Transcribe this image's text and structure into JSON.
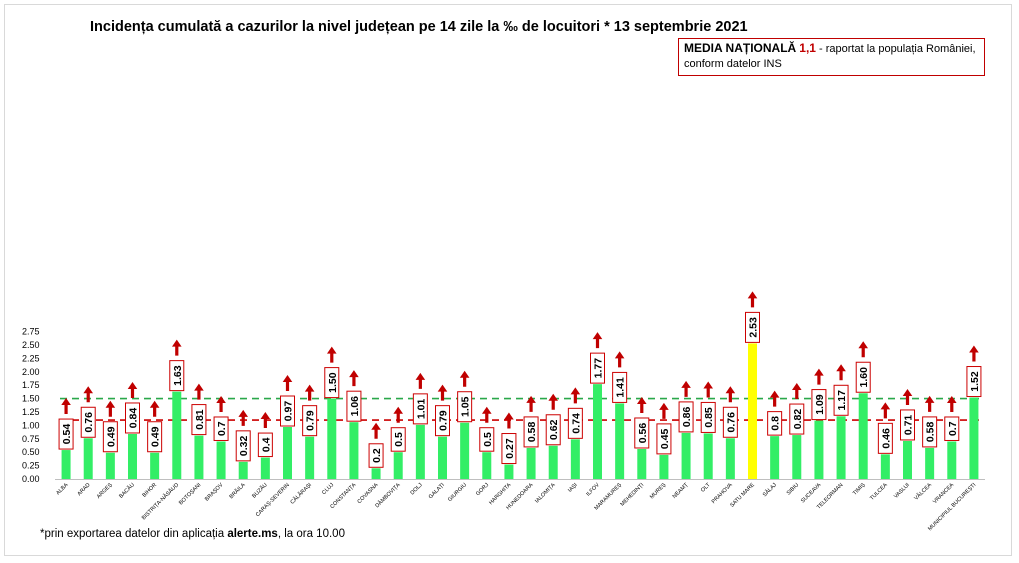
{
  "title": "Incidența cumulată a cazurilor la nivel județean pe 14 zile la ‰ de locuitori * 13 septembrie 2021",
  "note": {
    "lead": "MEDIA NAȚIONALĂ",
    "value": "1,1",
    "rest": " - raportat la populația României, conform datelor INS"
  },
  "footnote": {
    "pre": "*prin exportarea datelor din aplicația ",
    "bold": "alerte.ms",
    "post": ", la ora 10.00"
  },
  "colors": {
    "bar": "#33ee66",
    "highlight": "#ffff00",
    "red": "#cc0000",
    "green_line": "#2aa84a",
    "red_line": "#cc0000",
    "arrow": "#c00000"
  },
  "chart_data": {
    "type": "bar",
    "ylim": [
      0,
      2.75
    ],
    "yticks": [
      "0.00",
      "0.25",
      "0.50",
      "0.75",
      "1.00",
      "1.25",
      "1.50",
      "1.75",
      "2.00",
      "2.25",
      "2.50",
      "2.75"
    ],
    "reference_lines": [
      {
        "value": 1.5,
        "style": "dashed",
        "color": "green"
      },
      {
        "value": 1.1,
        "style": "dashed",
        "color": "red"
      }
    ],
    "highlight": "SATU MARE",
    "categories": [
      "ALBA",
      "ARAD",
      "ARGEȘ",
      "BACĂU",
      "BIHOR",
      "BISTRIȚA-NĂSĂUD",
      "BOTOȘANI",
      "BRAȘOV",
      "BRĂILA",
      "BUZĂU",
      "CARAȘ-SEVERIN",
      "CĂLĂRAȘI",
      "CLUJ",
      "CONSTANȚA",
      "COVASNA",
      "DÂMBOVIȚA",
      "DOLJ",
      "GALAȚI",
      "GIURGIU",
      "GORJ",
      "HARGHITA",
      "HUNEDOARA",
      "IALOMIȚA",
      "IAȘI",
      "ILFOV",
      "MARAMUREȘ",
      "MEHEDINȚI",
      "MUREȘ",
      "NEAMȚ",
      "OLT",
      "PRAHOVA",
      "SATU MARE",
      "SĂLAJ",
      "SIBIU",
      "SUCEAVA",
      "TELEORMAN",
      "TIMIȘ",
      "TULCEA",
      "VASLUI",
      "VÂLCEA",
      "VRANCEA",
      "MUNICIPIUL BUCUREȘTI"
    ],
    "values": [
      0.54,
      0.76,
      0.49,
      0.84,
      0.49,
      1.63,
      0.81,
      0.7,
      0.32,
      0.4,
      0.97,
      0.79,
      1.5,
      1.06,
      0.2,
      0.5,
      1.01,
      0.79,
      1.05,
      0.5,
      0.27,
      0.58,
      0.62,
      0.74,
      1.77,
      1.41,
      0.56,
      0.45,
      0.86,
      0.85,
      0.76,
      2.53,
      0.8,
      0.82,
      1.09,
      1.17,
      1.6,
      0.46,
      0.71,
      0.58,
      0.7,
      1.52
    ],
    "labels": [
      "0.54",
      "0.76",
      "0.49",
      "0.84",
      "0.49",
      "1.63",
      "0.81",
      "0.7",
      "0.32",
      "0.4",
      "0.97",
      "0.79",
      "1.50",
      "1.06",
      "0.2",
      "0.5",
      "1.01",
      "0.79",
      "1.05",
      "0.5",
      "0.27",
      "0.58",
      "0.62",
      "0.74",
      "1.77",
      "1.41",
      "0.56",
      "0.45",
      "0.86",
      "0.85",
      "0.76",
      "2.53",
      "0.8",
      "0.82",
      "1.09",
      "1.17",
      "1.60",
      "0.46",
      "0.71",
      "0.58",
      "0.7",
      "1.52"
    ],
    "trend_arrows": "up"
  }
}
